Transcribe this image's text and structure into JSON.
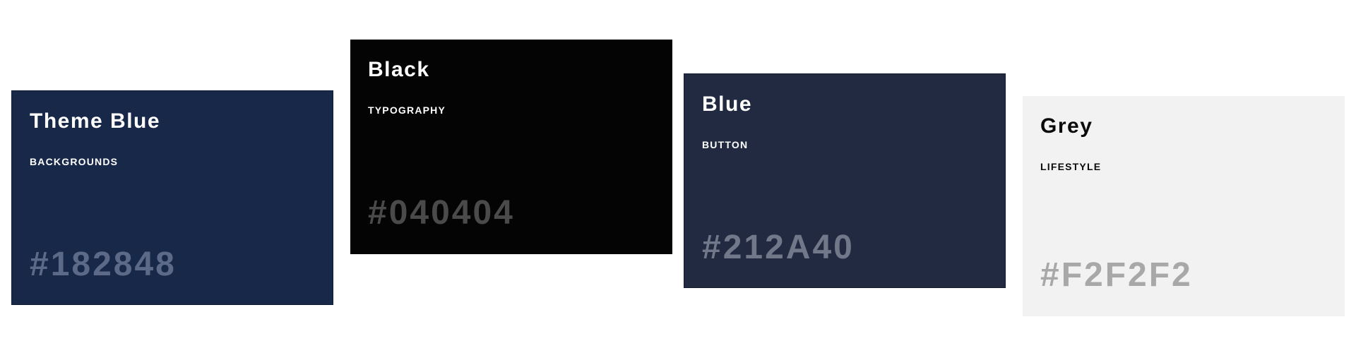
{
  "swatches": [
    {
      "name": "Theme Blue",
      "usage": "BACKGROUNDS",
      "hex": "#182848",
      "color": "#182848"
    },
    {
      "name": "Black",
      "usage": "TYPOGRAPHY",
      "hex": "#040404",
      "color": "#040404"
    },
    {
      "name": "Blue",
      "usage": "BUTTON",
      "hex": "#212A40",
      "color": "#212A40"
    },
    {
      "name": "Grey",
      "usage": "LIFESTYLE",
      "hex": "#F2F2F2",
      "color": "#F2F2F2"
    }
  ]
}
